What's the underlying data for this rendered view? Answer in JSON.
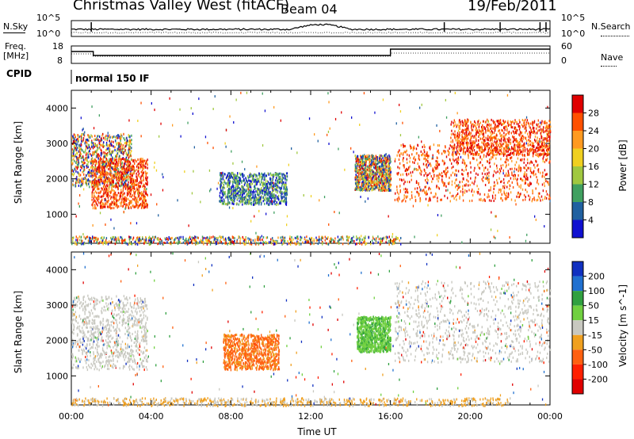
{
  "header": {
    "station": "Christmas Valley West (fitACF)",
    "beam": "Beam 04",
    "date": "19/Feb/2011"
  },
  "summary_panels": {
    "nsky_label": "N.Sky",
    "nsky_ticks": [
      "10^5",
      "10^0"
    ],
    "nsearch_label": "N.Search",
    "nsearch_ticks": [
      "10^5",
      "10^0"
    ],
    "freq_label": "Freq.",
    "freq_unit": "[MHz]",
    "freq_ticks": [
      "18",
      "8"
    ],
    "nave_label": "Nave",
    "nave_ticks": [
      "60",
      "0"
    ],
    "cpid_label": "CPID",
    "cpid_value": "normal 150 IF"
  },
  "chart_data": [
    {
      "type": "heatmap",
      "panel": "power",
      "ylabel": "Slant Range [km]",
      "ylim": [
        180,
        4500
      ],
      "yticks": [
        1000,
        2000,
        3000,
        4000
      ],
      "xlim_hours": [
        0,
        24
      ],
      "colorbar_label": "Power [dB]",
      "colorbar_ticks": [
        "28",
        "24",
        "20",
        "16",
        "12",
        "8",
        "4"
      ],
      "colorbar_colors": [
        "#e00000",
        "#ff5000",
        "#ff9a20",
        "#f0d020",
        "#a0c840",
        "#40a060",
        "#2060a0",
        "#1010d0"
      ],
      "echo_regions": [
        {
          "t0": 0.0,
          "t1": 3.0,
          "r0": 1800,
          "r1": 3300,
          "level": "mixed"
        },
        {
          "t0": 1.0,
          "t1": 3.8,
          "r0": 1200,
          "r1": 2600,
          "level": "high"
        },
        {
          "t0": 7.4,
          "t1": 10.8,
          "r0": 1300,
          "r1": 2200,
          "level": "low"
        },
        {
          "t0": 14.2,
          "t1": 16.0,
          "r0": 1700,
          "r1": 2700,
          "level": "mixed"
        },
        {
          "t0": 16.2,
          "t1": 24.0,
          "r0": 1400,
          "r1": 3000,
          "level": "high"
        },
        {
          "t0": 19.0,
          "t1": 24.0,
          "r0": 2700,
          "r1": 3700,
          "level": "high"
        },
        {
          "t0": 0.0,
          "t1": 16.5,
          "r0": 180,
          "r1": 400,
          "level": "ground"
        }
      ]
    },
    {
      "type": "heatmap",
      "panel": "velocity",
      "xlabel": "Time UT",
      "ylabel": "Slant Range [km]",
      "ylim": [
        180,
        4500
      ],
      "yticks": [
        1000,
        2000,
        3000,
        4000
      ],
      "xlim_hours": [
        0,
        24
      ],
      "xticks": [
        "00:00",
        "04:00",
        "08:00",
        "12:00",
        "16:00",
        "20:00",
        "00:00"
      ],
      "colorbar_label": "Velocity [m s^-1]",
      "colorbar_ticks": [
        "200",
        "100",
        "50",
        "15",
        "-15",
        "-50",
        "-100",
        "-200"
      ],
      "colorbar_colors": [
        "#1030c0",
        "#2070d0",
        "#30a040",
        "#70d040",
        "#c8c8c0",
        "#f0a020",
        "#ff6010",
        "#ff2000",
        "#e00000"
      ],
      "echo_regions": [
        {
          "t0": 0.0,
          "t1": 3.8,
          "r0": 1200,
          "r1": 3300,
          "level": "ground-grey"
        },
        {
          "t0": 7.6,
          "t1": 10.4,
          "r0": 1200,
          "r1": 2200,
          "level": "negative"
        },
        {
          "t0": 14.3,
          "t1": 16.0,
          "r0": 1700,
          "r1": 2700,
          "level": "positive"
        },
        {
          "t0": 16.2,
          "t1": 24.0,
          "r0": 1400,
          "r1": 3700,
          "level": "ground-grey"
        },
        {
          "t0": 0.0,
          "t1": 22.0,
          "r0": 180,
          "r1": 400,
          "level": "slow"
        }
      ]
    }
  ]
}
